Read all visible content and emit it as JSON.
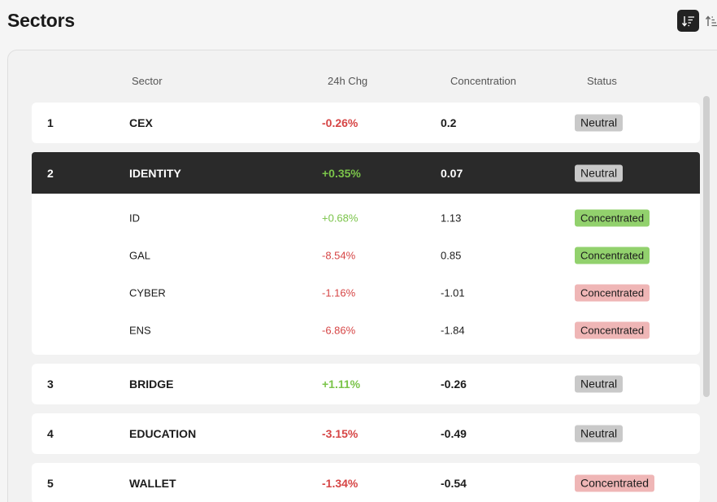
{
  "header": {
    "title": "Sectors"
  },
  "colors": {
    "negative": "#d64545",
    "positive": "#7bc44a",
    "neutral_badge": "#c9c9c9",
    "green_badge": "#92d16d",
    "red_badge": "#efb6b6",
    "selected_row": "#2a2a2a"
  },
  "columns": {
    "sector": "Sector",
    "chg": "24h Chg",
    "concentration": "Concentration",
    "status": "Status"
  },
  "rows": [
    {
      "rank": "1",
      "name": "CEX",
      "chg": "-0.26%",
      "concentration": "0.2",
      "status": "Neutral"
    },
    {
      "rank": "2",
      "name": "IDENTITY",
      "chg": "+0.35%",
      "concentration": "0.07",
      "status": "Neutral"
    },
    {
      "rank": "3",
      "name": "BRIDGE",
      "chg": "+1.11%",
      "concentration": "-0.26",
      "status": "Neutral"
    },
    {
      "rank": "4",
      "name": "EDUCATION",
      "chg": "-3.15%",
      "concentration": "-0.49",
      "status": "Neutral"
    },
    {
      "rank": "5",
      "name": "WALLET",
      "chg": "-1.34%",
      "concentration": "-0.54",
      "status": "Concentrated"
    }
  ],
  "expanded": [
    {
      "name": "ID",
      "chg": "+0.68%",
      "concentration": "1.13",
      "status": "Concentrated"
    },
    {
      "name": "GAL",
      "chg": "-8.54%",
      "concentration": "0.85",
      "status": "Concentrated"
    },
    {
      "name": "CYBER",
      "chg": "-1.16%",
      "concentration": "-1.01",
      "status": "Concentrated"
    },
    {
      "name": "ENS",
      "chg": "-6.86%",
      "concentration": "-1.84",
      "status": "Concentrated"
    }
  ],
  "icons": {
    "sort_desc": "sort-descending-icon",
    "sort_asc": "sort-ascending-icon"
  }
}
